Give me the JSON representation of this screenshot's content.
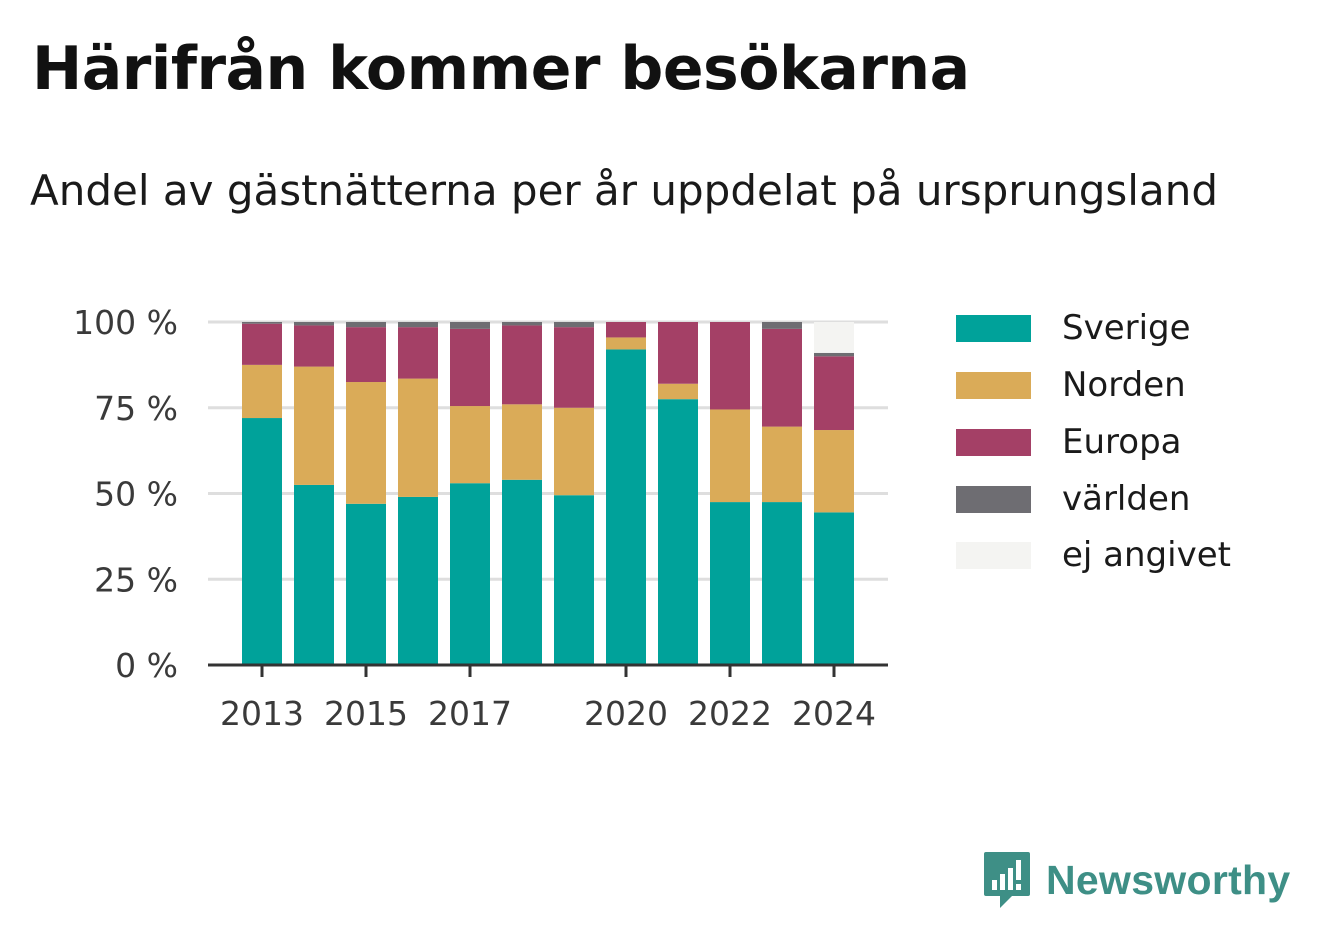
{
  "title": "Härifrån kommer besökarna",
  "subtitle": "Andel av gästnätterna per år uppdelat på ursprungsland",
  "brand": {
    "name": "Newsworthy",
    "icon": "newsworthy-logo-icon"
  },
  "legend": [
    {
      "label": "Sverige",
      "color": "#00a29a"
    },
    {
      "label": "Norden",
      "color": "#daab58"
    },
    {
      "label": "Europa",
      "color": "#a44066"
    },
    {
      "label": "världen",
      "color": "#6e6d72"
    },
    {
      "label": "ej angivet",
      "color": "#f4f4f2"
    }
  ],
  "chart_data": {
    "type": "bar",
    "stacked": true,
    "categories": [
      "2013",
      "2014",
      "2015",
      "2016",
      "2017",
      "2018",
      "2019",
      "2020",
      "2021",
      "2022",
      "2023",
      "2024"
    ],
    "x_tick_labels": [
      "2013",
      "2015",
      "2017",
      "2020",
      "2022",
      "2024"
    ],
    "y_tick_labels": [
      "0 %",
      "25 %",
      "50 %",
      "75 %",
      "100 %"
    ],
    "y_ticks": [
      0,
      25,
      50,
      75,
      100
    ],
    "ylim": [
      0,
      100
    ],
    "grid": true,
    "legend_position": "right",
    "series": [
      {
        "name": "Sverige",
        "color": "#00a29a",
        "values": [
          72,
          52.5,
          47,
          49,
          53,
          54,
          49.5,
          92,
          77.5,
          47.5,
          47.5,
          44.5
        ]
      },
      {
        "name": "Norden",
        "color": "#daab58",
        "values": [
          15.5,
          34.5,
          35.5,
          34.5,
          22.5,
          22,
          25.5,
          3.5,
          4.5,
          27,
          22,
          24
        ]
      },
      {
        "name": "Europa",
        "color": "#a44066",
        "values": [
          12,
          12,
          16,
          15,
          22.5,
          23,
          23.5,
          4.5,
          18,
          25.5,
          28.5,
          21.5
        ]
      },
      {
        "name": "världen",
        "color": "#6e6d72",
        "values": [
          0.5,
          1,
          1.5,
          1.5,
          2,
          1,
          1.5,
          0,
          0,
          0,
          2,
          1
        ]
      },
      {
        "name": "ej angivet",
        "color": "#f4f4f2",
        "values": [
          0,
          0,
          0,
          0,
          0,
          0,
          0,
          0,
          0,
          0,
          0,
          9
        ]
      }
    ]
  }
}
